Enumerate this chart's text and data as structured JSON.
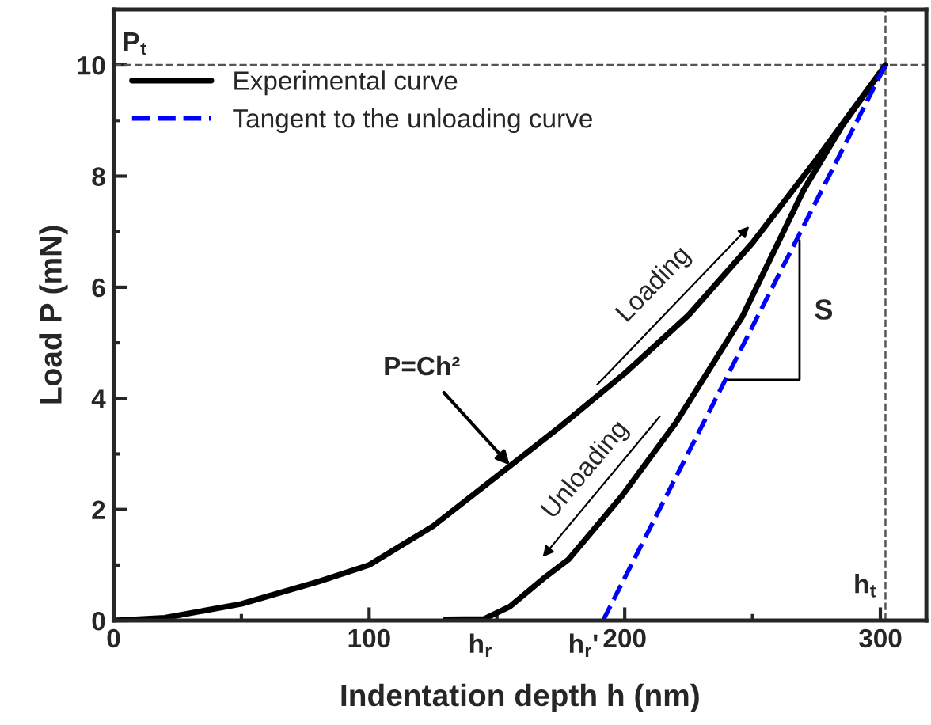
{
  "chart_data": {
    "type": "line",
    "xlabel": "Indentation depth h (nm)",
    "ylabel": "Load P (mN)",
    "series": [
      {
        "name": "Experimental curve",
        "color": "#000000",
        "line_style": "solid",
        "x": [
          0,
          20,
          50,
          80,
          100,
          125,
          150,
          175,
          200,
          225,
          250,
          275,
          302,
          285,
          270,
          246,
          220,
          199,
          178,
          168,
          155,
          145,
          130
        ],
        "values": [
          0,
          0.05,
          0.3,
          0.7,
          1.0,
          1.7,
          2.6,
          3.5,
          4.45,
          5.5,
          6.8,
          8.3,
          10,
          8.9,
          7.75,
          5.47,
          3.56,
          2.25,
          1.1,
          0.75,
          0.25,
          0.03,
          0.02
        ]
      },
      {
        "name": "Tangent to the unloading curve",
        "color": "#0000ff",
        "line_style": "dashed",
        "x": [
          191.5,
          302
        ],
        "values": [
          0,
          10
        ]
      }
    ],
    "xlim": [
      0,
      318
    ],
    "xticks": [
      0,
      100,
      200,
      300
    ],
    "ylim": [
      0,
      11
    ],
    "yticks": [
      0,
      2,
      4,
      6,
      8,
      10
    ],
    "ref_lines": [
      {
        "axis": "y",
        "value": 10,
        "label": "P$_{t}$",
        "color": "#555555",
        "line_style": "dashed"
      },
      {
        "axis": "x",
        "value": 302,
        "label": "h$_{t}$",
        "color": "#555555",
        "line_style": "dashed"
      }
    ],
    "annotations": [
      {
        "text": "h$_{r}$",
        "x": 147,
        "y": 0
      },
      {
        "text": "h$_{r}$'",
        "x": 189,
        "y": 0
      },
      {
        "text": "P=Ch²",
        "x": 155,
        "y": 2.8
      },
      "Loading",
      "Unloading",
      "S"
    ],
    "legend": "top left",
    "grid": false,
    "marker": "none"
  }
}
